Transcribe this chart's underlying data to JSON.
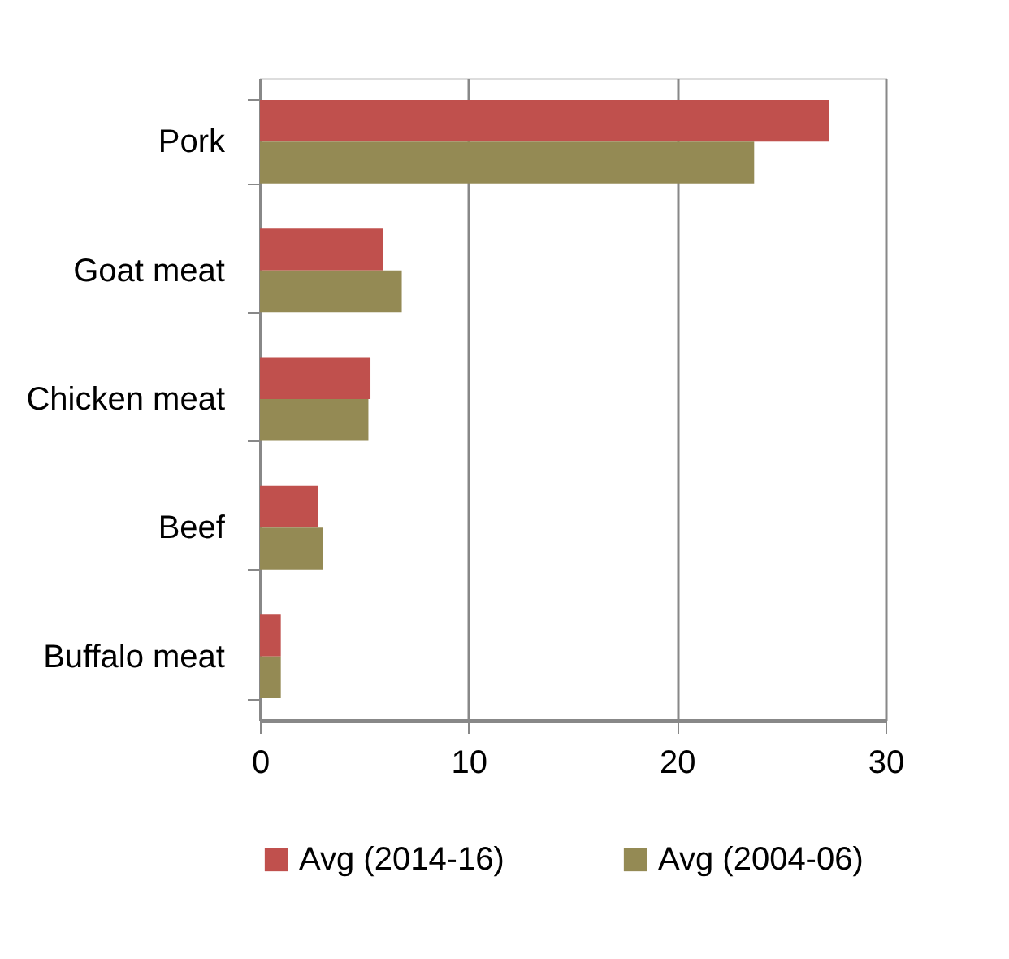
{
  "chart_data": {
    "type": "bar",
    "orientation": "horizontal",
    "categories": [
      "Pork",
      "Goat meat",
      "Chicken meat",
      "Beef",
      "Buffalo meat"
    ],
    "series": [
      {
        "name": "Avg (2014-16)",
        "color": "#c0504d",
        "values": [
          27.3,
          5.9,
          5.3,
          2.8,
          1.0
        ]
      },
      {
        "name": "Avg (2004-06)",
        "color": "#948a54",
        "values": [
          23.7,
          6.8,
          5.2,
          3.0,
          1.0
        ]
      }
    ],
    "xlim": [
      0,
      30
    ],
    "xticks": [
      0,
      10,
      20,
      30
    ],
    "grid": "x",
    "legend": "bottom"
  }
}
